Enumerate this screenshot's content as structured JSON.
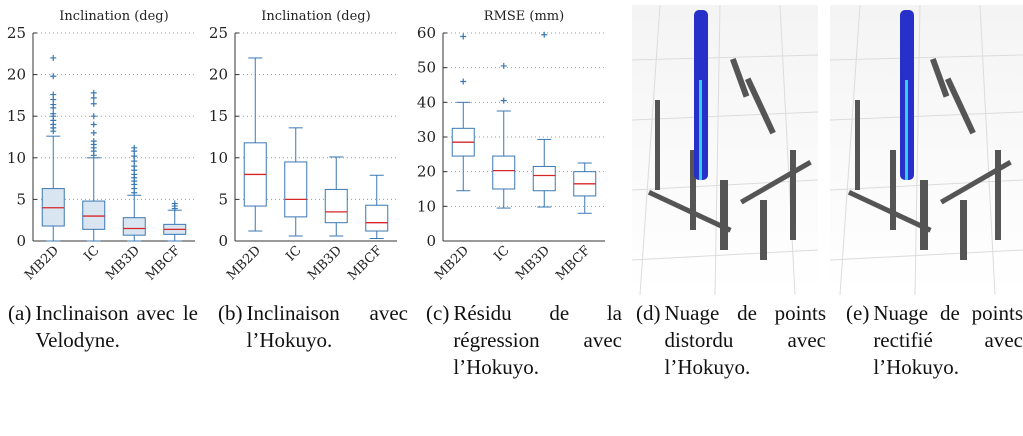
{
  "chart_data": [
    {
      "type": "box",
      "title": "Inclination (deg)",
      "categories": [
        "MB2D",
        "IC",
        "MB3D",
        "MBCF"
      ],
      "box_fill": "#d9e5f1",
      "color": "#3a78b4",
      "median_color": "#d62728",
      "ylim": [
        0,
        25
      ],
      "yticks": [
        0,
        5,
        10,
        15,
        20,
        25
      ],
      "grid": true,
      "boxes": [
        {
          "min": 0,
          "q1": 1.8,
          "median": 4,
          "q3": 6.3,
          "max": 12.6,
          "outliers": [
            13.2,
            13.6,
            14,
            14.5,
            15,
            15.3,
            16,
            16.4,
            17,
            17.6,
            19.8,
            22
          ]
        },
        {
          "min": 0,
          "q1": 1.4,
          "median": 3,
          "q3": 4.8,
          "max": 10,
          "outliers": [
            10.3,
            10.8,
            11.2,
            11.6,
            12,
            13,
            14,
            15,
            16.5,
            17.2,
            17.8
          ]
        },
        {
          "min": 0,
          "q1": 0.7,
          "median": 1.5,
          "q3": 2.8,
          "max": 5.5,
          "outliers": [
            5.8,
            6.3,
            6.8,
            7.2,
            7.6,
            8,
            8.5,
            9,
            9.6,
            10.2,
            10.8,
            11.2
          ]
        },
        {
          "min": 0,
          "q1": 0.8,
          "median": 1.4,
          "q3": 2,
          "max": 3.7,
          "outliers": [
            3.9,
            4.2,
            4.5
          ]
        }
      ]
    },
    {
      "type": "box",
      "title": "Inclination (deg)",
      "categories": [
        "MB2D",
        "IC",
        "MB3D",
        "MBCF"
      ],
      "box_fill": "#ffffff",
      "color": "#3a78b4",
      "median_color": "#d62728",
      "ylim": [
        0,
        25
      ],
      "yticks": [
        0,
        5,
        10,
        15,
        20,
        25
      ],
      "grid": true,
      "boxes": [
        {
          "min": 1.2,
          "q1": 4.2,
          "median": 8,
          "q3": 11.8,
          "max": 22,
          "outliers": []
        },
        {
          "min": 0.6,
          "q1": 2.9,
          "median": 5,
          "q3": 9.5,
          "max": 13.6,
          "outliers": []
        },
        {
          "min": 0.6,
          "q1": 2.2,
          "median": 3.5,
          "q3": 6.2,
          "max": 10.1,
          "outliers": []
        },
        {
          "min": 0.3,
          "q1": 1.2,
          "median": 2.2,
          "q3": 4.3,
          "max": 7.9,
          "outliers": []
        }
      ]
    },
    {
      "type": "box",
      "title": "RMSE (mm)",
      "categories": [
        "MB2D",
        "IC",
        "MB3D",
        "MBCF"
      ],
      "box_fill": "#ffffff",
      "color": "#3a78b4",
      "median_color": "#d62728",
      "ylim": [
        0,
        60
      ],
      "yticks": [
        0,
        10,
        20,
        30,
        40,
        50,
        60
      ],
      "grid": true,
      "boxes": [
        {
          "min": 14.5,
          "q1": 24.5,
          "median": 28.5,
          "q3": 32.5,
          "max": 40,
          "outliers": [
            46,
            59
          ]
        },
        {
          "min": 9.5,
          "q1": 15,
          "median": 20.3,
          "q3": 24.5,
          "max": 37.5,
          "outliers": [
            40.5,
            50.5
          ]
        },
        {
          "min": 9.8,
          "q1": 14.5,
          "median": 18.9,
          "q3": 21.5,
          "max": 29.3,
          "outliers": [
            59.5
          ]
        },
        {
          "min": 8,
          "q1": 13,
          "median": 16.5,
          "q3": 20,
          "max": 22.5,
          "outliers": []
        }
      ]
    }
  ],
  "captions": [
    {
      "label": "(a)",
      "text": "Inclinaison avec le Velodyne."
    },
    {
      "label": "(b)",
      "text": "Inclinaison avec l’Hokuyo."
    },
    {
      "label": "(c)",
      "text": "Résidu de la régression avec l’Hokuyo."
    },
    {
      "label": "(d)",
      "text": "Nuage de points distordu avec l’Hokuyo."
    },
    {
      "label": "(e)",
      "text": "Nuage de points rectifié avec l’Hokuyo."
    }
  ]
}
